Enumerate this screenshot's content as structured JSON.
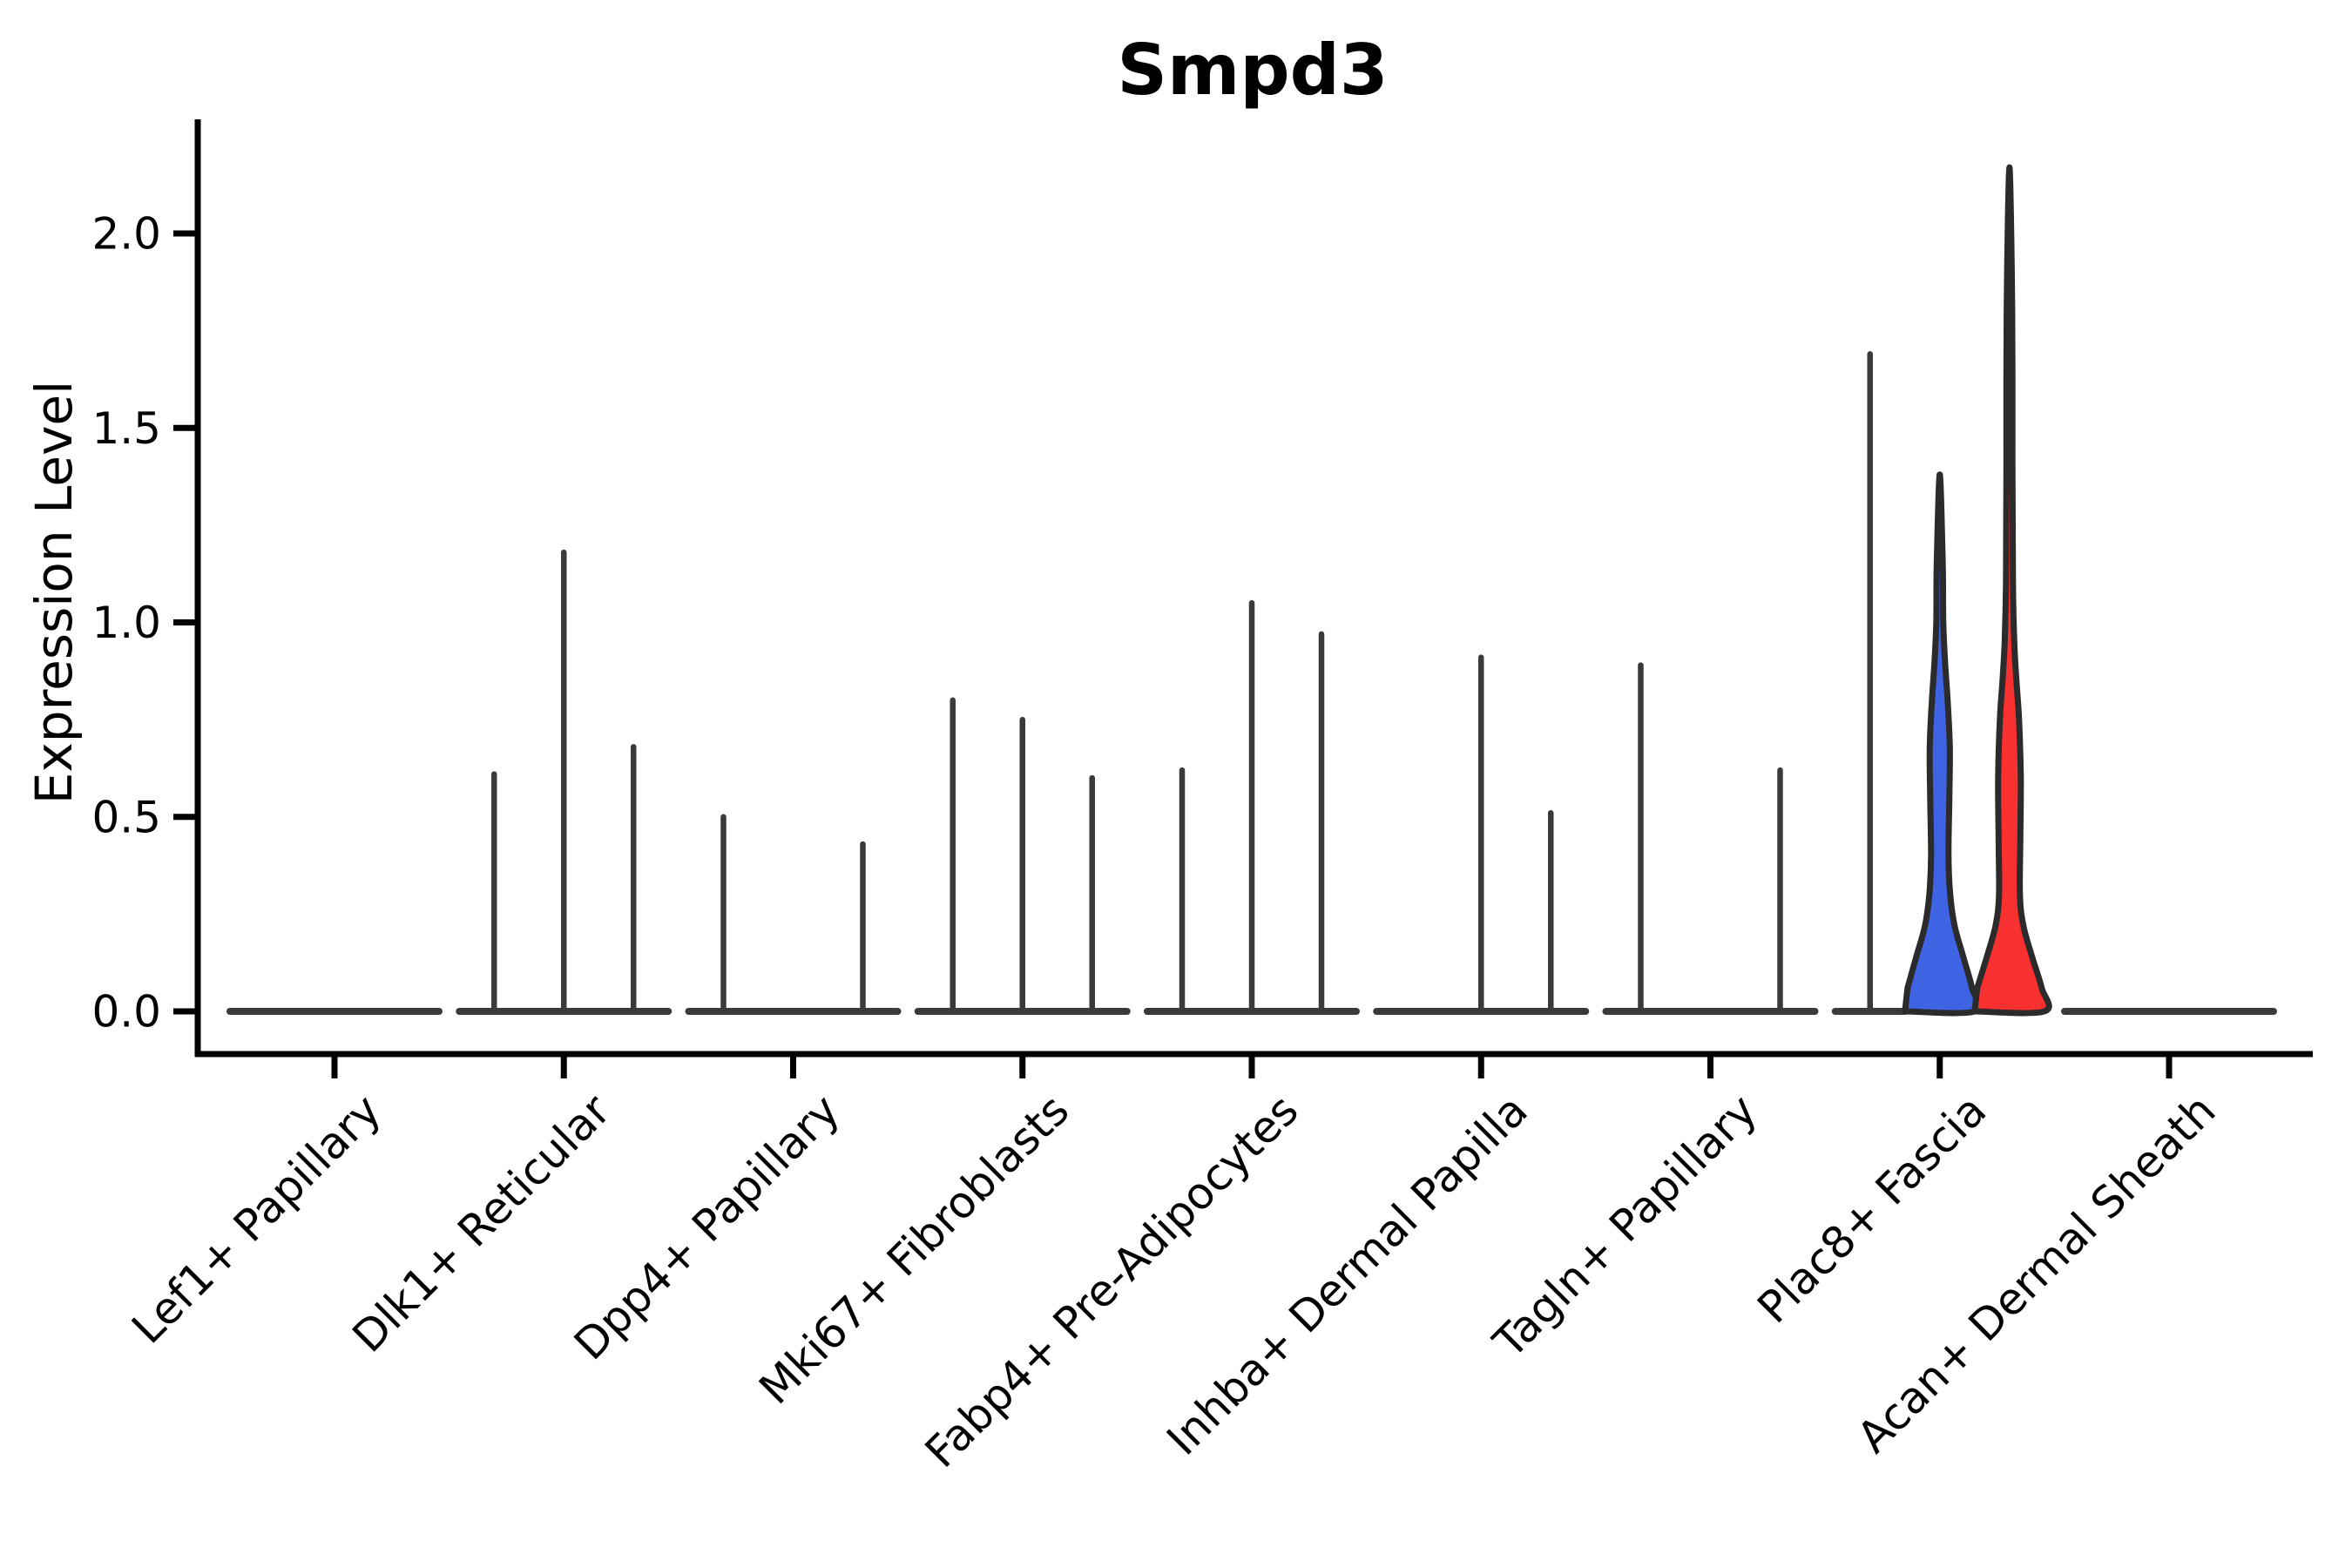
{
  "chart_data": {
    "type": "violin",
    "title": "Smpd3",
    "xlabel": "",
    "ylabel": "Expression Level",
    "ylim": [
      -0.11,
      2.29
    ],
    "yticks": [
      0.0,
      0.5,
      1.0,
      1.5,
      2.0
    ],
    "ytick_labels": [
      "0.0",
      "0.5",
      "1.0",
      "1.5",
      "2.0"
    ],
    "grid": false,
    "legend": "none",
    "violins_per_category": 3,
    "categories": [
      "Lef1+ Papillary",
      "Dlk1+ Reticular",
      "Dpp4+ Papillary",
      "Mki67+ Fibroblasts",
      "Fabp4+ Pre-Adipocytes",
      "Inhba+ Dermal Papilla",
      "Tagln+ Papillary",
      "Plac8+ Fascia",
      "Acan+ Dermal Sheath"
    ],
    "groups": [
      {
        "category": "Lef1+ Papillary",
        "violins": [
          {
            "peak": 0
          },
          {
            "peak": 0
          },
          {
            "peak": 0
          }
        ]
      },
      {
        "category": "Dlk1+ Reticular",
        "violins": [
          {
            "peak": 0.61
          },
          {
            "peak": 1.18
          },
          {
            "peak": 0.68
          }
        ]
      },
      {
        "category": "Dpp4+ Papillary",
        "violins": [
          {
            "peak": 0.5
          },
          {
            "peak": 0
          },
          {
            "peak": 0.43
          }
        ]
      },
      {
        "category": "Mki67+ Fibroblasts",
        "violins": [
          {
            "peak": 0.8
          },
          {
            "peak": 0.75
          },
          {
            "peak": 0.6
          }
        ]
      },
      {
        "category": "Fabp4+ Pre-Adipocytes",
        "violins": [
          {
            "peak": 0.62
          },
          {
            "peak": 1.05
          },
          {
            "peak": 0.97
          }
        ]
      },
      {
        "category": "Inhba+ Dermal Papilla",
        "violins": [
          {
            "peak": 0
          },
          {
            "peak": 0.91
          },
          {
            "peak": 0.51
          }
        ]
      },
      {
        "category": "Tagln+ Papillary",
        "violins": [
          {
            "peak": 0.89
          },
          {
            "peak": 0
          },
          {
            "peak": 0.62
          }
        ]
      },
      {
        "category": "Plac8+ Fascia",
        "violins": [
          {
            "peak": 1.69
          },
          {
            "peak": 1.38,
            "fill": "#3e64e4",
            "profile": [
              [
                0,
                40
              ],
              [
                0.06,
                37
              ],
              [
                0.14,
                27
              ],
              [
                0.22,
                17
              ],
              [
                0.3,
                12
              ],
              [
                0.4,
                10
              ],
              [
                0.55,
                11
              ],
              [
                0.68,
                11.5
              ],
              [
                0.8,
                9
              ],
              [
                0.9,
                6
              ],
              [
                1.0,
                4
              ],
              [
                1.15,
                3.4
              ],
              [
                1.38,
                0
              ]
            ]
          },
          {
            "peak": 2.17,
            "fill": "#f83030",
            "profile": [
              [
                0,
                40
              ],
              [
                0.06,
                37
              ],
              [
                0.14,
                26
              ],
              [
                0.22,
                16
              ],
              [
                0.3,
                12
              ],
              [
                0.45,
                12.5
              ],
              [
                0.6,
                13
              ],
              [
                0.75,
                11
              ],
              [
                0.85,
                8
              ],
              [
                0.95,
                5.5
              ],
              [
                1.1,
                4
              ],
              [
                1.4,
                3.4
              ],
              [
                1.8,
                3.2
              ],
              [
                2.17,
                0
              ]
            ]
          }
        ]
      },
      {
        "category": "Acan+ Dermal Sheath",
        "violins": [
          {
            "peak": 0
          },
          {
            "peak": 0
          },
          {
            "peak": 0
          }
        ]
      }
    ],
    "colors": {
      "spike_line": "#3a3a3a",
      "violin_outline": "#2b2b2b",
      "axis": "#000000",
      "blue_fill": "#3e64e4",
      "red_fill": "#f83030",
      "background": "#ffffff"
    }
  }
}
